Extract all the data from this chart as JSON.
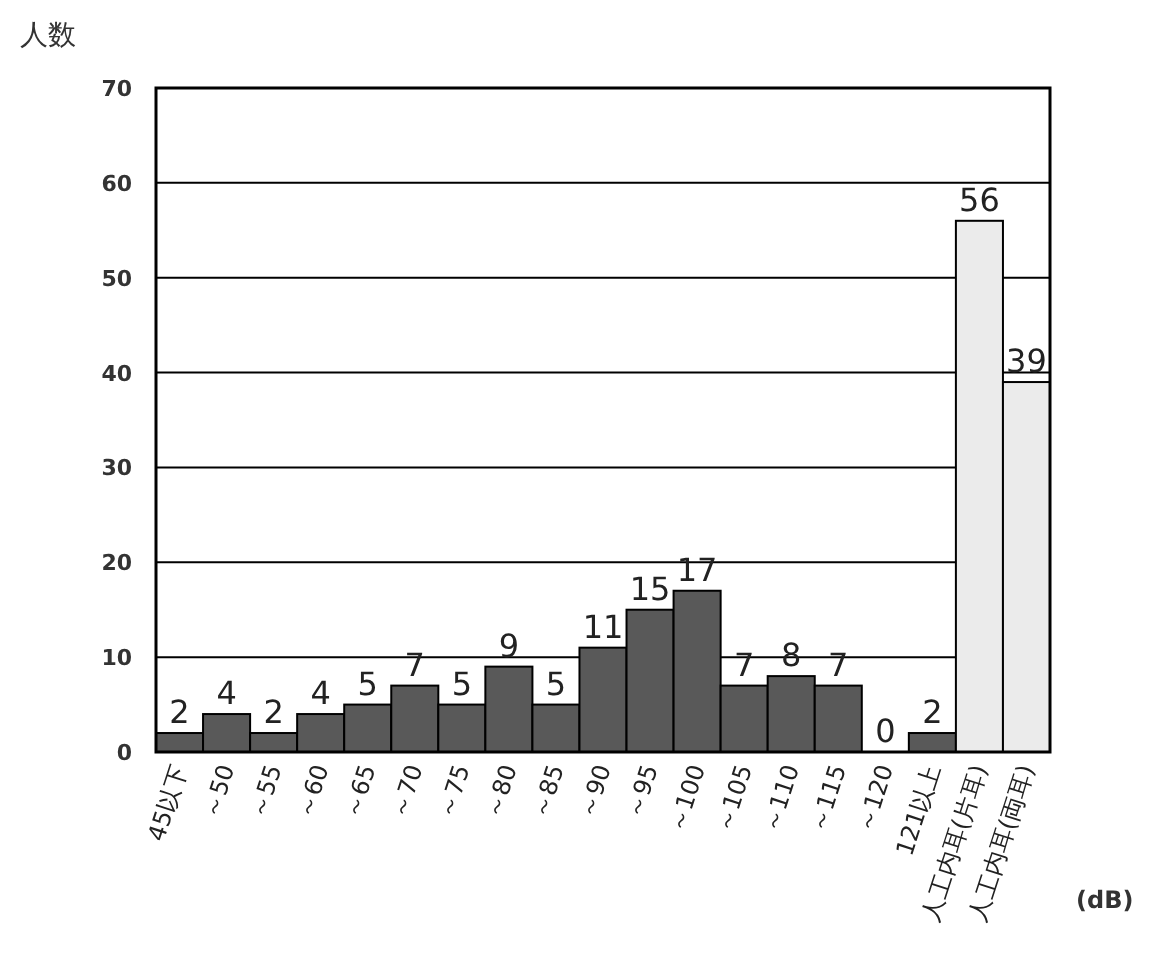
{
  "chart_data": {
    "type": "bar",
    "ylabel": "人数",
    "xlabel": "(dB)",
    "categories": [
      "45以下",
      "～50",
      "～55",
      "～60",
      "～65",
      "～70",
      "～75",
      "～80",
      "～85",
      "～90",
      "～95",
      "～100",
      "～105",
      "～110",
      "～115",
      "～120",
      "121以上",
      "人工内耳(片耳)",
      "人工内耳(両耳)"
    ],
    "values": [
      2,
      4,
      2,
      4,
      5,
      7,
      5,
      9,
      5,
      11,
      15,
      17,
      7,
      8,
      7,
      0,
      2,
      56,
      39
    ],
    "colors": [
      "#595959",
      "#595959",
      "#595959",
      "#595959",
      "#595959",
      "#595959",
      "#595959",
      "#595959",
      "#595959",
      "#595959",
      "#595959",
      "#595959",
      "#595959",
      "#595959",
      "#595959",
      "#595959",
      "#595959",
      "#ebebeb",
      "#ebebeb"
    ],
    "ylim": [
      0,
      70
    ],
    "yticks": [
      0,
      10,
      20,
      30,
      40,
      50,
      60,
      70
    ],
    "grid": "y",
    "data_labels": true
  }
}
